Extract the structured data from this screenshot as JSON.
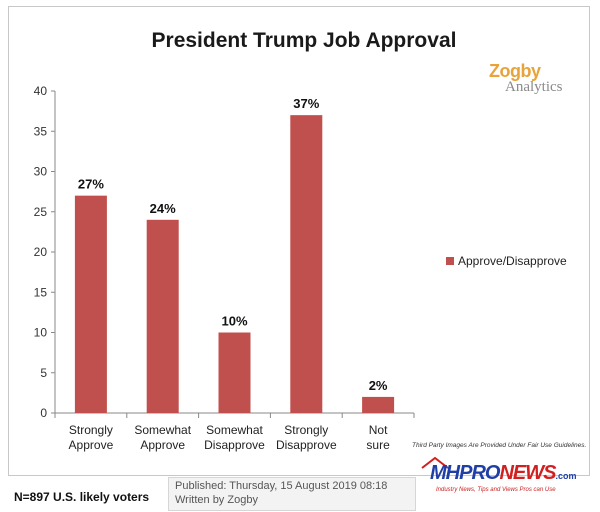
{
  "chart_data": {
    "type": "bar",
    "title": "President Trump Job Approval",
    "categories": [
      [
        "Strongly",
        "Approve"
      ],
      [
        "Somewhat",
        "Approve"
      ],
      [
        "Somewhat",
        "Disapprove"
      ],
      [
        "Strongly",
        "Disapprove"
      ],
      [
        "Not",
        "sure"
      ]
    ],
    "series": [
      {
        "name": "Approve/Disapprove",
        "values": [
          27,
          24,
          10,
          37,
          2
        ]
      }
    ],
    "data_labels": [
      "27%",
      "24%",
      "10%",
      "37%",
      "2%"
    ],
    "yticks": [
      0,
      5,
      10,
      15,
      20,
      25,
      30,
      35,
      40
    ],
    "ylim": [
      0,
      40
    ],
    "grid": false,
    "legend_position": "right",
    "bar_color": "#c0504d"
  },
  "branding": {
    "zogby": "Zogby",
    "analytics": "Analytics"
  },
  "footer": {
    "sample": "N=897 U.S. likely voters",
    "published": "Published: Thursday, 15 August 2019 08:18",
    "written_by": "Written by Zogby",
    "fair_use": "Third Party Images Are Provided Under Fair Use Guidelines.",
    "mh_logo_a": "MHPRO",
    "mh_logo_b": "NEWS",
    "mh_logo_c": ".com",
    "mh_tagline": "Industry News, Tips and Views Pros can Use"
  }
}
